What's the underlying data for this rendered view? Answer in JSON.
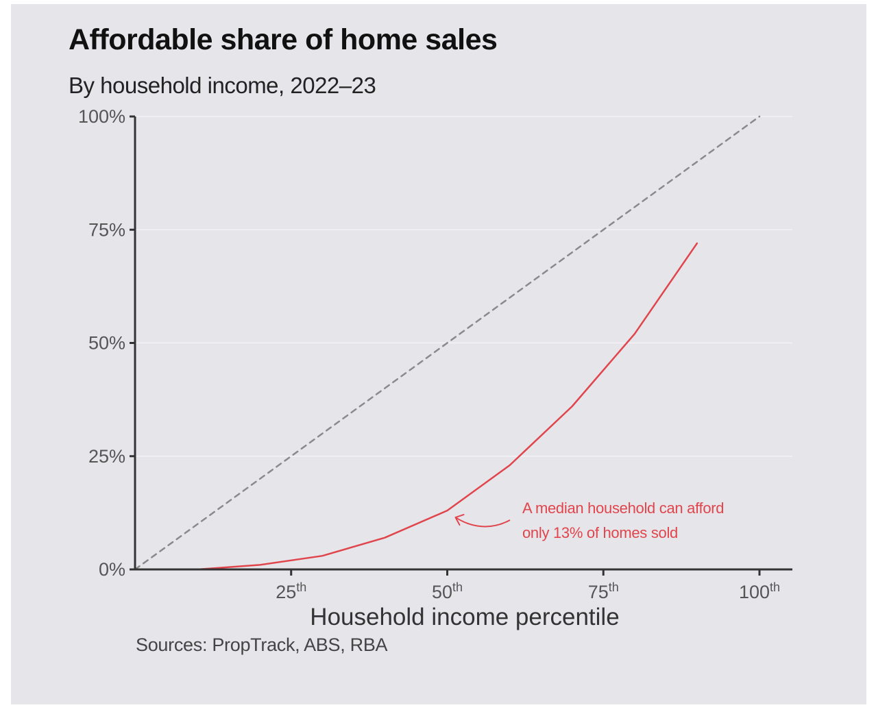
{
  "chart_data": {
    "type": "line",
    "title": "Affordable share of home sales",
    "subtitle": "By household income, 2022–23",
    "xlabel": "Household income percentile",
    "ylabel": "",
    "xlim": [
      0,
      100
    ],
    "ylim": [
      0,
      100
    ],
    "y_ticks": [
      {
        "value": 0,
        "label": "0%"
      },
      {
        "value": 25,
        "label": "25%"
      },
      {
        "value": 50,
        "label": "50%"
      },
      {
        "value": 75,
        "label": "75%"
      },
      {
        "value": 100,
        "label": "100%"
      }
    ],
    "x_ticks": [
      {
        "value": 25,
        "num": "25",
        "sup": "th"
      },
      {
        "value": 50,
        "num": "50",
        "sup": "th"
      },
      {
        "value": 75,
        "num": "75",
        "sup": "th"
      },
      {
        "value": 100,
        "num": "100",
        "sup": "th"
      }
    ],
    "grid": true,
    "series": [
      {
        "color": "#e0454c",
        "style": "solid",
        "x": [
          10,
          20,
          30,
          40,
          50,
          60,
          70,
          80,
          90
        ],
        "y": [
          0,
          1,
          3,
          7,
          13,
          23,
          36,
          52,
          72
        ]
      },
      {
        "color": "#8a8a8a",
        "style": "dashed",
        "x": [
          0,
          100
        ],
        "y": [
          0,
          100
        ]
      }
    ],
    "annotation": {
      "lines": [
        "A median household can afford",
        "only 13% of homes sold"
      ],
      "points_to": {
        "x": 50,
        "y": 13
      },
      "color": "#e0454c"
    },
    "source": "Sources: PropTrack, ABS, RBA"
  }
}
